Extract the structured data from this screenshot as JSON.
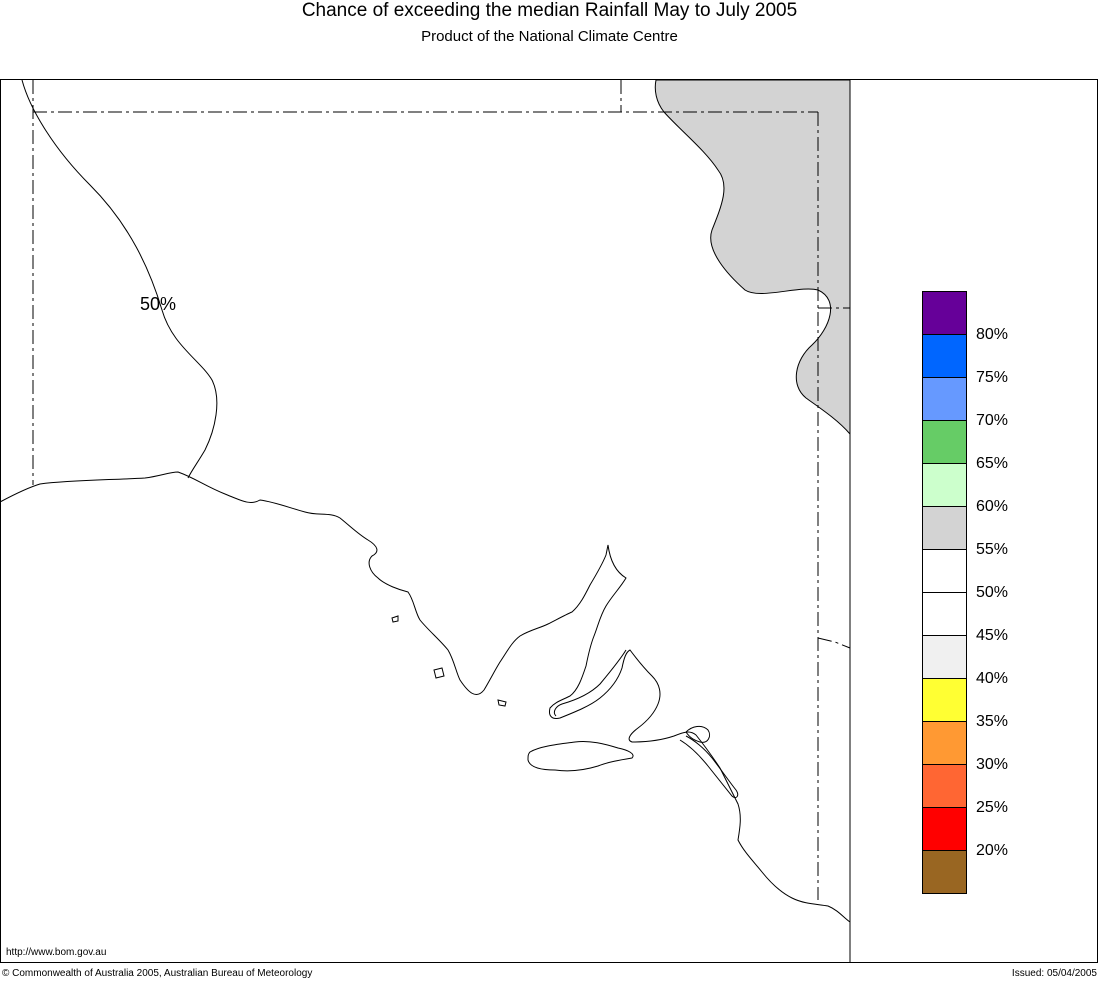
{
  "title": "Chance of exceeding the median Rainfall May to July 2005",
  "subtitle": "Product of the National Climate Centre",
  "contour_label": "50%",
  "legend": {
    "colors": [
      "#660099",
      "#0066ff",
      "#6699ff",
      "#66cc66",
      "#ccffcc",
      "#d3d3d3",
      "#ffffff",
      "#ffffff",
      "#f0f0f0",
      "#ffff33",
      "#ff9933",
      "#ff6633",
      "#ff0000",
      "#996622"
    ],
    "labels": [
      "80%",
      "75%",
      "70%",
      "65%",
      "60%",
      "55%",
      "50%",
      "45%",
      "40%",
      "35%",
      "30%",
      "25%",
      "20%"
    ]
  },
  "footer": {
    "url": "http://www.bom.gov.au",
    "copyright": "© Commonwealth of Australia 2005, Australian Bureau of Meteorology",
    "issued": "Issued: 05/04/2005"
  },
  "colors": {
    "shaded_region": "#d3d3d3",
    "outline": "#000000"
  }
}
